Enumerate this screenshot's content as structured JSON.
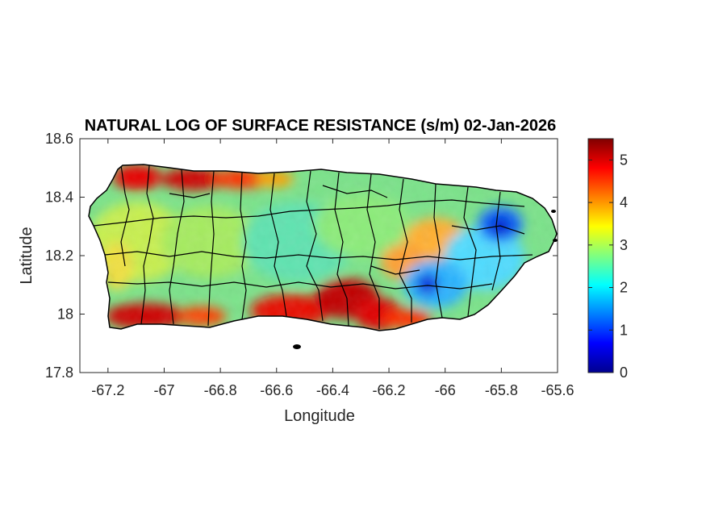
{
  "figure": {
    "title": "NATURAL LOG OF SURFACE RESISTANCE (s/m) 02-Jan-2026",
    "x_axis": {
      "label": "Longitude",
      "range": [
        -67.3,
        -65.6
      ],
      "ticks": [
        -67.2,
        -67,
        -66.8,
        -66.6,
        -66.4,
        -66.2,
        -66,
        -65.8,
        -65.6
      ],
      "tick_labels": [
        "-67.2",
        "-67",
        "-66.8",
        "-66.6",
        "-66.4",
        "-66.2",
        "-66",
        "-65.8",
        "-65.6"
      ]
    },
    "y_axis": {
      "label": "Latitude",
      "range": [
        17.8,
        18.6
      ],
      "ticks": [
        17.8,
        18,
        18.2,
        18.4,
        18.6
      ],
      "tick_labels": [
        "17.8",
        "18",
        "18.2",
        "18.4",
        "18.6"
      ]
    },
    "colorbar": {
      "colormap": "jet",
      "range": [
        0,
        5.5
      ],
      "ticks": [
        0,
        1,
        2,
        3,
        4,
        5
      ],
      "tick_labels": [
        "0",
        "1",
        "2",
        "3",
        "4",
        "5"
      ]
    },
    "map": {
      "region": "Puerto Rico",
      "boundaries": "municipalities",
      "boundary_color": "#000000",
      "features": [
        {
          "description": "high resistance band along north coast",
          "lon_range": [
            -67.1,
            -66.6
          ],
          "lat": 18.47,
          "value": 4.8
        },
        {
          "description": "high resistance band along south coast",
          "lon_range": [
            -67.2,
            -66.2
          ],
          "lat": 17.98,
          "value": 5.0
        },
        {
          "description": "low resistance area near east",
          "lon": -65.8,
          "lat": 18.3,
          "value": 0.8
        },
        {
          "description": "low resistance area east-central",
          "lon": -66.05,
          "lat": 18.1,
          "value": 1.0
        }
      ]
    }
  }
}
